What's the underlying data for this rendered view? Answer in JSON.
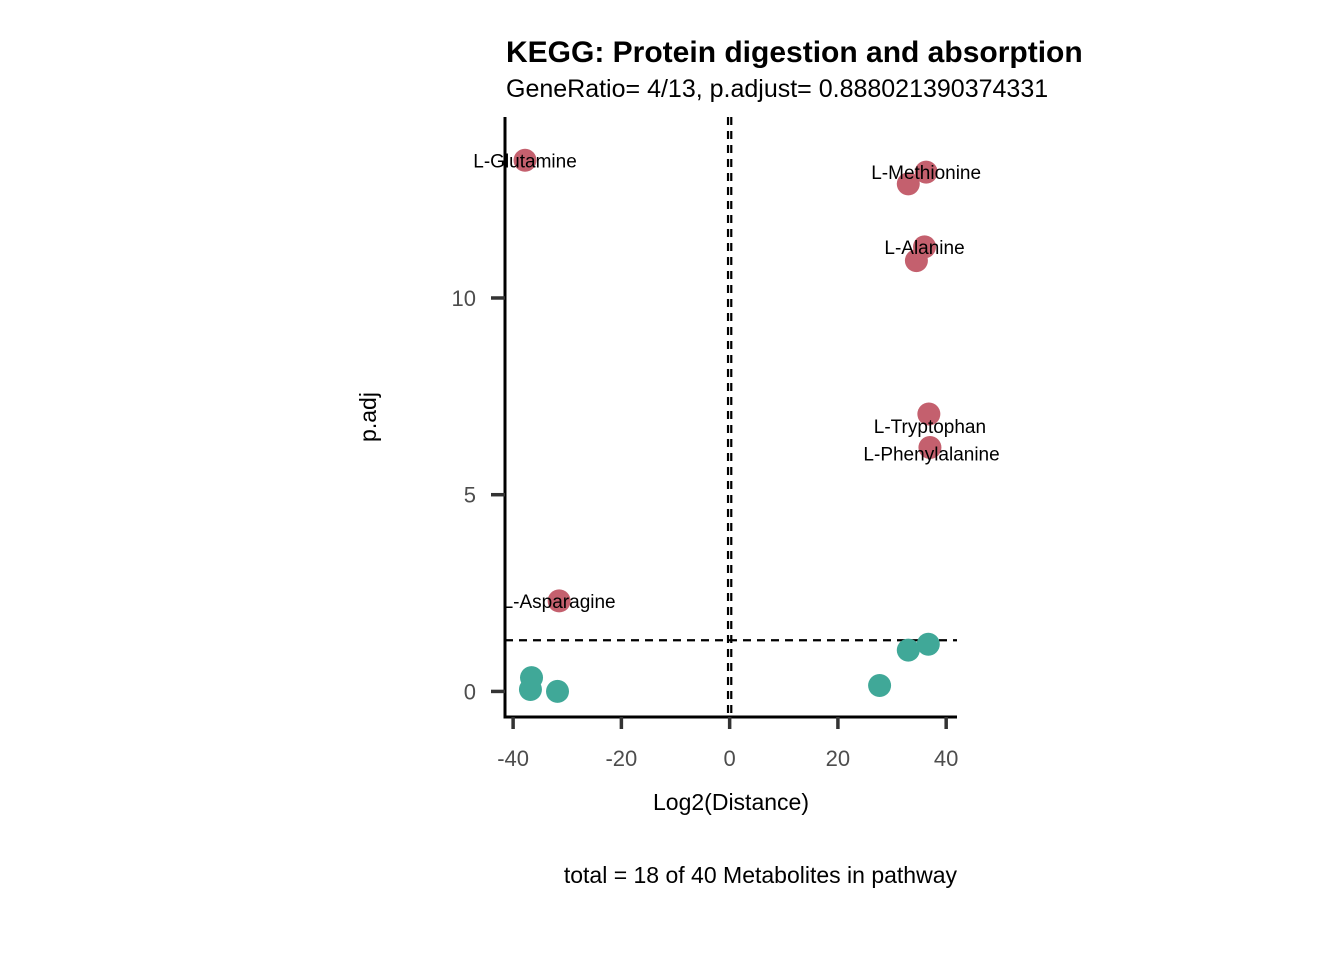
{
  "chart_data": {
    "type": "scatter",
    "title": "KEGG: Protein digestion and absorption",
    "subtitle": "GeneRatio= 4/13, p.adjust= 0.888021390374331",
    "caption": "total = 18 of 40 Metabolites in pathway",
    "xlabel": "Log2(Distance)",
    "ylabel": "p.adj",
    "xlim": [
      -41.5,
      42
    ],
    "ylim": [
      -0.65,
      14.6
    ],
    "x_ticks": [
      -40,
      -20,
      0,
      20,
      40
    ],
    "y_ticks": [
      0,
      5,
      10
    ],
    "x_tick_labels": [
      "-40",
      "-20",
      "0",
      "20",
      "40"
    ],
    "y_tick_labels": [
      "0",
      "5",
      "10"
    ],
    "reference_lines": {
      "vertical_x": [
        -0.3,
        0.3
      ],
      "horizontal_y": [
        1.3
      ]
    },
    "grid": false,
    "legend": "none",
    "colors": {
      "significant": "#C4606E",
      "not_significant": "#40A898"
    },
    "points": [
      {
        "x": -37.8,
        "y": 13.5,
        "group": "significant"
      },
      {
        "x": 36.3,
        "y": 13.2,
        "group": "significant"
      },
      {
        "x": 33.0,
        "y": 12.9,
        "group": "significant"
      },
      {
        "x": 36.0,
        "y": 11.3,
        "group": "significant"
      },
      {
        "x": 34.5,
        "y": 10.95,
        "group": "significant"
      },
      {
        "x": 36.8,
        "y": 7.05,
        "group": "significant"
      },
      {
        "x": 37.0,
        "y": 6.2,
        "group": "significant"
      },
      {
        "x": -31.5,
        "y": 2.3,
        "group": "significant"
      },
      {
        "x": 36.7,
        "y": 1.2,
        "group": "not_significant"
      },
      {
        "x": 33.0,
        "y": 1.05,
        "group": "not_significant"
      },
      {
        "x": 27.7,
        "y": 0.15,
        "group": "not_significant"
      },
      {
        "x": -36.6,
        "y": 0.35,
        "group": "not_significant"
      },
      {
        "x": -36.8,
        "y": 0.05,
        "group": "not_significant"
      },
      {
        "x": -31.8,
        "y": 0.0,
        "group": "not_significant"
      }
    ],
    "labels": [
      {
        "text": "L-Glutamine",
        "x": -37.8,
        "y": 13.5
      },
      {
        "text": "L-Methionine",
        "x": 36.3,
        "y": 13.2
      },
      {
        "text": "L-Alanine",
        "x": 36.0,
        "y": 11.3
      },
      {
        "text": "L-Tryptophan",
        "x": 37.0,
        "y": 6.75
      },
      {
        "text": "L-Phenylalanine",
        "x": 37.3,
        "y": 6.05
      },
      {
        "text": "L-Asparagine",
        "x": -31.5,
        "y": 2.3
      }
    ]
  }
}
